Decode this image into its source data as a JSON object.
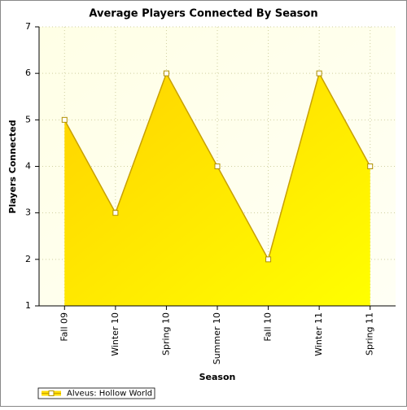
{
  "chart_data": {
    "type": "area",
    "title": "Average Players Connected By Season",
    "x_label": "Season",
    "y_label": "Players Connected",
    "categories": [
      "Fall 09",
      "Winter 10",
      "Spring 10",
      "Summer 10",
      "Fall 10",
      "Winter 11",
      "Spring 11"
    ],
    "series": [
      {
        "name": "Alveus: Hollow World",
        "color": "#ffdd00",
        "values": [
          5,
          3,
          6,
          4,
          2,
          6,
          4
        ]
      }
    ],
    "ylim": [
      1,
      7
    ],
    "yticks": [
      1,
      2,
      3,
      4,
      5,
      6,
      7
    ],
    "grid": true,
    "legend": "bottom-left"
  }
}
